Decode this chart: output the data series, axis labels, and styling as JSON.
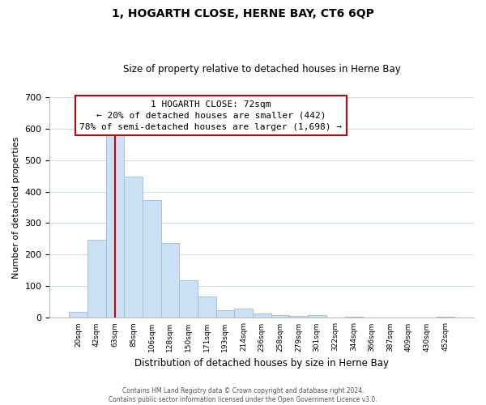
{
  "title": "1, HOGARTH CLOSE, HERNE BAY, CT6 6QP",
  "subtitle": "Size of property relative to detached houses in Herne Bay",
  "xlabel": "Distribution of detached houses by size in Herne Bay",
  "ylabel": "Number of detached properties",
  "bar_labels": [
    "20sqm",
    "42sqm",
    "63sqm",
    "85sqm",
    "106sqm",
    "128sqm",
    "150sqm",
    "171sqm",
    "193sqm",
    "214sqm",
    "236sqm",
    "258sqm",
    "279sqm",
    "301sqm",
    "322sqm",
    "344sqm",
    "366sqm",
    "387sqm",
    "409sqm",
    "430sqm",
    "452sqm"
  ],
  "bar_values": [
    18,
    248,
    590,
    448,
    372,
    238,
    120,
    67,
    23,
    30,
    13,
    10,
    5,
    10,
    0,
    4,
    0,
    0,
    0,
    0,
    3
  ],
  "bar_color": "#cce0f5",
  "bar_edge_color": "#9bbdd8",
  "vline_color": "#cc0000",
  "ylim": [
    0,
    700
  ],
  "yticks": [
    0,
    100,
    200,
    300,
    400,
    500,
    600,
    700
  ],
  "annotation_title": "1 HOGARTH CLOSE: 72sqm",
  "annotation_line1": "← 20% of detached houses are smaller (442)",
  "annotation_line2": "78% of semi-detached houses are larger (1,698) →",
  "annotation_box_color": "#ffffff",
  "annotation_box_edge": "#cc0000",
  "footer1": "Contains HM Land Registry data © Crown copyright and database right 2024.",
  "footer2": "Contains public sector information licensed under the Open Government Licence v3.0.",
  "background_color": "#ffffff",
  "grid_color": "#d0dde8"
}
